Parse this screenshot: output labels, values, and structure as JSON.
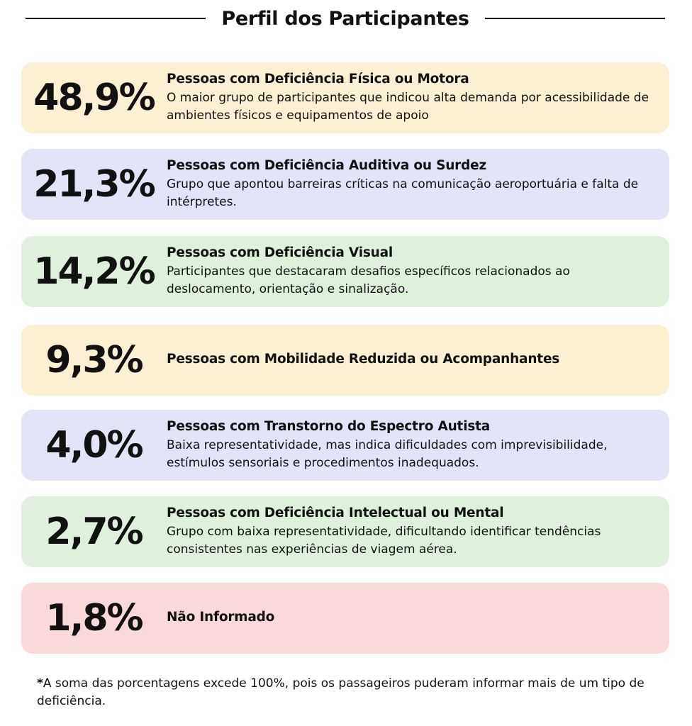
{
  "title": "Perfil dos Participantes",
  "colors": {
    "yellow": "#fcf0d2",
    "lavender": "#e2e4f7",
    "green": "#dff0dd",
    "pink": "#f9d9d9"
  },
  "items": [
    {
      "percent": "48,9%",
      "title": "Pessoas com Deficiência Física ou Motora",
      "description": "O maior grupo de participantes que indicou alta demanda por acessibilidade de ambientes físicos e equipamentos de apoio",
      "color": "yellow"
    },
    {
      "percent": "21,3%",
      "title": "Pessoas com Deficiência Auditiva ou Surdez",
      "description": "Grupo que apontou barreiras críticas na comunicação aeroportuária e falta de intérpretes.",
      "color": "lavender"
    },
    {
      "percent": "14,2%",
      "title": "Pessoas com Deficiência Visual",
      "description": "Participantes que destacaram desafios específicos relacionados ao deslocamento, orientação e sinalização.",
      "color": "green"
    },
    {
      "percent": "9,3%",
      "title": "Pessoas com Mobilidade Reduzida ou Acompanhantes",
      "description": "",
      "color": "yellow"
    },
    {
      "percent": "4,0%",
      "title": "Pessoas com Transtorno do Espectro Autista",
      "description": "Baixa representatividade, mas indica dificuldades com imprevisibilidade, estímulos sensoriais e procedimentos inadequados.",
      "color": "lavender"
    },
    {
      "percent": "2,7%",
      "title": "Pessoas com Deficiência Intelectual ou Mental",
      "description": "Grupo com baixa representatividade, dificultando identificar tendências consistentes nas experiências de viagem aérea.",
      "color": "green"
    },
    {
      "percent": "1,8%",
      "title": "Não Informado",
      "description": "",
      "color": "pink"
    }
  ],
  "footnote": {
    "mark": "*",
    "text": "A soma das porcentagens excede 100%, pois os passageiros puderam informar mais de um tipo de deficiência."
  }
}
